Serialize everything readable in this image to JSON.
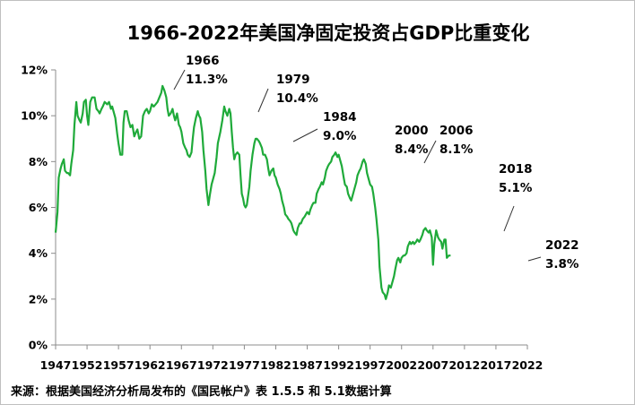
{
  "chart_data": {
    "type": "line",
    "title": "1966-2022年美国净固定投资占GDP比重变化",
    "source": "来源：根据美国经济分析局发布的《国民帐户》表 1.5.5 和 5.1数据计算",
    "xlabel": "",
    "ylabel": "",
    "xlim": [
      1947,
      2022
    ],
    "ylim": [
      0,
      12
    ],
    "x_ticks": [
      1947,
      1952,
      1957,
      1962,
      1967,
      1972,
      1977,
      1982,
      1987,
      1992,
      1997,
      2002,
      2007,
      2012,
      2017,
      2022
    ],
    "x_tick_labels": [
      "1947",
      "1952",
      "1957",
      "1962",
      "1967",
      "1972",
      "1977",
      "1982",
      "1987",
      "1992",
      "1997",
      "2002",
      "2007",
      "2012",
      "2017",
      "2022"
    ],
    "y_ticks": [
      0,
      2,
      4,
      6,
      8,
      10,
      12
    ],
    "y_tick_labels": [
      "0%",
      "2%",
      "4%",
      "6%",
      "8%",
      "10%",
      "12%"
    ],
    "grid": false,
    "line_color": "#1faa3a",
    "series": [
      {
        "values": [
          [
            1947.0,
            4.9
          ],
          [
            1947.3,
            5.8
          ],
          [
            1947.5,
            7.3
          ],
          [
            1947.8,
            7.7
          ],
          [
            1948.0,
            7.9
          ],
          [
            1948.3,
            8.1
          ],
          [
            1948.5,
            7.6
          ],
          [
            1948.8,
            7.5
          ],
          [
            1949.0,
            7.5
          ],
          [
            1949.3,
            7.4
          ],
          [
            1949.5,
            7.9
          ],
          [
            1949.8,
            8.5
          ],
          [
            1950.0,
            9.6
          ],
          [
            1950.3,
            10.6
          ],
          [
            1950.5,
            10.0
          ],
          [
            1950.8,
            9.8
          ],
          [
            1951.0,
            9.7
          ],
          [
            1951.3,
            10.1
          ],
          [
            1951.5,
            10.6
          ],
          [
            1951.8,
            10.7
          ],
          [
            1952.0,
            10.0
          ],
          [
            1952.2,
            9.6
          ],
          [
            1952.5,
            10.6
          ],
          [
            1952.8,
            10.8
          ],
          [
            1953.2,
            10.8
          ],
          [
            1953.5,
            10.3
          ],
          [
            1953.8,
            10.2
          ],
          [
            1954.0,
            10.1
          ],
          [
            1954.3,
            10.3
          ],
          [
            1954.5,
            10.4
          ],
          [
            1954.8,
            10.6
          ],
          [
            1955.2,
            10.5
          ],
          [
            1955.5,
            10.6
          ],
          [
            1955.8,
            10.3
          ],
          [
            1956.0,
            10.4
          ],
          [
            1956.3,
            10.1
          ],
          [
            1956.5,
            9.9
          ],
          [
            1956.8,
            9.2
          ],
          [
            1957.0,
            8.8
          ],
          [
            1957.3,
            8.3
          ],
          [
            1957.6,
            8.3
          ],
          [
            1957.8,
            9.7
          ],
          [
            1958.0,
            10.2
          ],
          [
            1958.3,
            10.2
          ],
          [
            1958.6,
            9.8
          ],
          [
            1958.9,
            9.5
          ],
          [
            1959.2,
            9.6
          ],
          [
            1959.5,
            9.1
          ],
          [
            1959.8,
            9.3
          ],
          [
            1960.0,
            9.4
          ],
          [
            1960.3,
            9.0
          ],
          [
            1960.6,
            9.1
          ],
          [
            1960.9,
            10.0
          ],
          [
            1961.2,
            10.2
          ],
          [
            1961.5,
            10.3
          ],
          [
            1961.8,
            10.1
          ],
          [
            1962.0,
            10.2
          ],
          [
            1962.3,
            10.5
          ],
          [
            1962.6,
            10.4
          ],
          [
            1962.9,
            10.5
          ],
          [
            1963.2,
            10.6
          ],
          [
            1963.5,
            10.8
          ],
          [
            1963.8,
            11.0
          ],
          [
            1964.0,
            11.3
          ],
          [
            1964.3,
            11.1
          ],
          [
            1964.6,
            10.8
          ],
          [
            1964.8,
            10.3
          ],
          [
            1965.0,
            10.0
          ],
          [
            1965.3,
            10.1
          ],
          [
            1965.6,
            10.3
          ],
          [
            1965.8,
            10.0
          ],
          [
            1966.0,
            9.8
          ],
          [
            1966.3,
            10.1
          ],
          [
            1966.6,
            9.6
          ],
          [
            1966.8,
            9.5
          ],
          [
            1967.0,
            9.3
          ],
          [
            1967.3,
            8.8
          ],
          [
            1967.6,
            8.6
          ],
          [
            1967.8,
            8.5
          ],
          [
            1968.0,
            8.3
          ],
          [
            1968.3,
            8.2
          ],
          [
            1968.6,
            8.4
          ],
          [
            1968.8,
            9.0
          ],
          [
            1969.0,
            9.5
          ],
          [
            1969.3,
            9.9
          ],
          [
            1969.6,
            10.2
          ],
          [
            1969.8,
            10.0
          ],
          [
            1970.0,
            9.9
          ],
          [
            1970.3,
            9.3
          ],
          [
            1970.5,
            8.5
          ],
          [
            1970.8,
            7.6
          ],
          [
            1971.0,
            6.8
          ],
          [
            1971.3,
            6.1
          ],
          [
            1971.5,
            6.5
          ],
          [
            1971.8,
            7.0
          ],
          [
            1972.0,
            7.2
          ],
          [
            1972.3,
            7.5
          ],
          [
            1972.6,
            8.2
          ],
          [
            1972.8,
            8.8
          ],
          [
            1973.2,
            9.3
          ],
          [
            1973.5,
            9.8
          ],
          [
            1973.8,
            10.4
          ],
          [
            1974.0,
            10.2
          ],
          [
            1974.3,
            10.0
          ],
          [
            1974.6,
            10.3
          ],
          [
            1974.8,
            10.1
          ],
          [
            1975.0,
            9.3
          ],
          [
            1975.2,
            8.6
          ],
          [
            1975.4,
            8.1
          ],
          [
            1975.6,
            8.3
          ],
          [
            1975.9,
            8.4
          ],
          [
            1976.2,
            8.3
          ],
          [
            1976.4,
            7.4
          ],
          [
            1976.6,
            6.6
          ],
          [
            1976.8,
            6.4
          ],
          [
            1977.0,
            6.1
          ],
          [
            1977.2,
            6.0
          ],
          [
            1977.4,
            6.1
          ],
          [
            1977.6,
            6.5
          ],
          [
            1977.8,
            6.9
          ],
          [
            1978.0,
            7.6
          ],
          [
            1978.3,
            8.3
          ],
          [
            1978.6,
            8.8
          ],
          [
            1978.8,
            9.0
          ],
          [
            1979.0,
            9.0
          ],
          [
            1979.3,
            8.9
          ],
          [
            1979.5,
            8.8
          ],
          [
            1979.8,
            8.6
          ],
          [
            1980.0,
            8.3
          ],
          [
            1980.3,
            8.3
          ],
          [
            1980.6,
            8.1
          ],
          [
            1980.8,
            7.7
          ],
          [
            1981.0,
            7.4
          ],
          [
            1981.3,
            7.6
          ],
          [
            1981.6,
            7.7
          ],
          [
            1981.8,
            7.4
          ],
          [
            1982.0,
            7.3
          ],
          [
            1982.3,
            7.0
          ],
          [
            1982.6,
            6.8
          ],
          [
            1982.8,
            6.6
          ],
          [
            1983.0,
            6.3
          ],
          [
            1983.3,
            6.0
          ],
          [
            1983.5,
            5.7
          ],
          [
            1983.8,
            5.6
          ],
          [
            1984.0,
            5.5
          ],
          [
            1984.3,
            5.4
          ],
          [
            1984.5,
            5.3
          ],
          [
            1984.8,
            5.0
          ],
          [
            1985.0,
            4.9
          ],
          [
            1985.3,
            4.8
          ],
          [
            1985.5,
            5.1
          ],
          [
            1985.8,
            5.3
          ],
          [
            1986.0,
            5.3
          ],
          [
            1986.3,
            5.5
          ],
          [
            1986.6,
            5.6
          ],
          [
            1986.8,
            5.7
          ],
          [
            1987.0,
            5.8
          ],
          [
            1987.3,
            5.7
          ],
          [
            1987.5,
            5.9
          ],
          [
            1987.8,
            6.1
          ],
          [
            1988.0,
            6.2
          ],
          [
            1988.3,
            6.2
          ],
          [
            1988.5,
            6.6
          ],
          [
            1988.8,
            6.8
          ],
          [
            1989.0,
            6.9
          ],
          [
            1989.3,
            7.1
          ],
          [
            1989.5,
            7.0
          ],
          [
            1989.8,
            7.3
          ],
          [
            1990.0,
            7.6
          ],
          [
            1990.3,
            7.8
          ],
          [
            1990.5,
            7.9
          ],
          [
            1990.8,
            8.0
          ],
          [
            1991.0,
            8.2
          ],
          [
            1991.3,
            8.3
          ],
          [
            1991.5,
            8.4
          ],
          [
            1991.8,
            8.2
          ],
          [
            1992.0,
            8.3
          ],
          [
            1992.3,
            8.0
          ],
          [
            1992.5,
            7.8
          ],
          [
            1992.8,
            7.3
          ],
          [
            1993.0,
            7.0
          ],
          [
            1993.3,
            6.9
          ],
          [
            1993.5,
            6.6
          ],
          [
            1993.8,
            6.4
          ],
          [
            1994.0,
            6.3
          ],
          [
            1994.3,
            6.6
          ],
          [
            1994.5,
            6.8
          ],
          [
            1994.8,
            7.1
          ],
          [
            1995.0,
            7.4
          ],
          [
            1995.3,
            7.6
          ],
          [
            1995.5,
            7.7
          ],
          [
            1995.8,
            8.0
          ],
          [
            1996.0,
            8.1
          ],
          [
            1996.3,
            7.9
          ],
          [
            1996.5,
            7.5
          ],
          [
            1996.8,
            7.2
          ],
          [
            1997.0,
            7.0
          ],
          [
            1997.3,
            6.9
          ],
          [
            1997.5,
            6.6
          ],
          [
            1997.8,
            6.0
          ],
          [
            1998.0,
            5.5
          ],
          [
            1998.3,
            4.6
          ],
          [
            1998.5,
            3.4
          ],
          [
            1998.8,
            2.5
          ],
          [
            1999.0,
            2.3
          ],
          [
            1999.3,
            2.2
          ],
          [
            1999.5,
            2.0
          ],
          [
            1999.8,
            2.3
          ],
          [
            2000.0,
            2.6
          ],
          [
            2000.3,
            2.5
          ],
          [
            2000.5,
            2.7
          ],
          [
            2000.8,
            3.0
          ],
          [
            2001.0,
            3.3
          ],
          [
            2001.3,
            3.7
          ],
          [
            2001.5,
            3.8
          ],
          [
            2001.8,
            3.6
          ],
          [
            2002.0,
            3.8
          ],
          [
            2002.3,
            3.9
          ],
          [
            2002.5,
            3.9
          ],
          [
            2002.8,
            4.0
          ],
          [
            2003.0,
            4.3
          ],
          [
            2003.3,
            4.5
          ],
          [
            2003.5,
            4.4
          ],
          [
            2003.8,
            4.5
          ],
          [
            2004.0,
            4.4
          ],
          [
            2004.3,
            4.5
          ],
          [
            2004.5,
            4.6
          ],
          [
            2004.8,
            4.5
          ],
          [
            2005.0,
            4.6
          ],
          [
            2005.3,
            4.8
          ],
          [
            2005.5,
            5.0
          ],
          [
            2005.8,
            5.1
          ],
          [
            2006.0,
            5.0
          ],
          [
            2006.3,
            4.9
          ],
          [
            2006.5,
            5.0
          ],
          [
            2006.8,
            4.7
          ],
          [
            2007.0,
            3.5
          ],
          [
            2007.2,
            4.4
          ],
          [
            2007.5,
            5.0
          ],
          [
            2007.8,
            4.7
          ],
          [
            2008.0,
            4.6
          ],
          [
            2008.3,
            4.5
          ],
          [
            2008.5,
            4.2
          ],
          [
            2008.8,
            4.6
          ],
          [
            2009.0,
            4.6
          ],
          [
            2009.2,
            3.8
          ],
          [
            2009.5,
            3.9
          ],
          [
            2009.8,
            3.9
          ]
        ]
      }
    ],
    "annotations": [
      {
        "year": "1966",
        "value": "11.3%"
      },
      {
        "year": "1979",
        "value": "10.4%"
      },
      {
        "year": "1984",
        "value": "9.0%"
      },
      {
        "year": "2000",
        "value": "8.4%"
      },
      {
        "year": "2006",
        "value": "8.1%"
      },
      {
        "year": "2018",
        "value": "5.1%"
      },
      {
        "year": "2022",
        "value": "3.8%"
      }
    ]
  }
}
